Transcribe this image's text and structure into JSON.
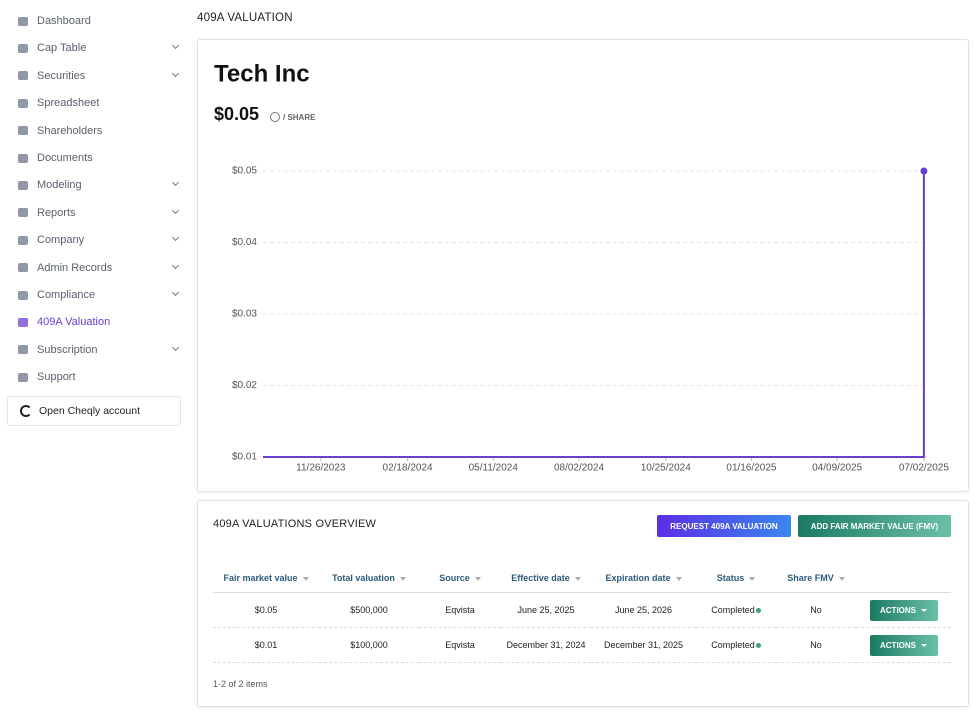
{
  "sidebar": {
    "items": [
      {
        "label": "Dashboard"
      },
      {
        "label": "Cap Table",
        "expandable": true
      },
      {
        "label": "Securities",
        "expandable": true
      },
      {
        "label": "Spreadsheet"
      },
      {
        "label": "Shareholders"
      },
      {
        "label": "Documents"
      },
      {
        "label": "Modeling",
        "expandable": true
      },
      {
        "label": "Reports",
        "expandable": true
      },
      {
        "label": "Company",
        "expandable": true
      },
      {
        "label": "Admin Records",
        "expandable": true
      },
      {
        "label": "Compliance",
        "expandable": true
      },
      {
        "label": "409A Valuation",
        "active": true
      },
      {
        "label": "Subscription",
        "expandable": true
      },
      {
        "label": "Support"
      }
    ],
    "cheqly": "Open Cheqly account"
  },
  "page_title": "409A VALUATION",
  "company": "Tech Inc",
  "price": "$0.05",
  "price_unit": "/ SHARE",
  "chart_data": {
    "type": "line",
    "x": [
      "10/01/2023",
      "07/02/2025",
      "07/02/2025"
    ],
    "values": [
      0.01,
      0.01,
      0.05
    ],
    "color": "#6a3fcf",
    "xlim": [
      "10/01/2023",
      "07/05/2025"
    ],
    "xticks": [
      "11/26/2023",
      "02/18/2024",
      "05/11/2024",
      "08/02/2024",
      "10/25/2024",
      "01/16/2025",
      "04/09/2025",
      "07/02/2025"
    ],
    "ylim": [
      0.01,
      0.05
    ],
    "yticks": [
      {
        "value": 0.01,
        "label": "$0.01"
      },
      {
        "value": 0.02,
        "label": "$0.02"
      },
      {
        "value": 0.03,
        "label": "$0.03"
      },
      {
        "value": 0.04,
        "label": "$0.04"
      },
      {
        "value": 0.05,
        "label": "$0.05"
      }
    ],
    "grid": true
  },
  "overview": {
    "title": "409A VALUATIONS OVERVIEW",
    "buttons": [
      "REQUEST 409A VALUATION",
      "ADD FAIR MARKET VALUE (FMV)"
    ],
    "table": {
      "columns": [
        "Fair market value",
        "Total valuation",
        "Source",
        "Effective date",
        "Expiration date",
        "Status",
        "Share FMV"
      ],
      "rows": [
        [
          "$0.05",
          "$500,000",
          "Eqvista",
          "June 25, 2025",
          "June 25, 2026",
          "Completed",
          "No",
          "ACTIONS"
        ],
        [
          "$0.01",
          "$100,000",
          "Eqvista",
          "December 31, 2024",
          "December 31, 2025",
          "Completed",
          "No",
          "ACTIONS"
        ]
      ]
    },
    "footer": "1-2 of 2 items"
  }
}
